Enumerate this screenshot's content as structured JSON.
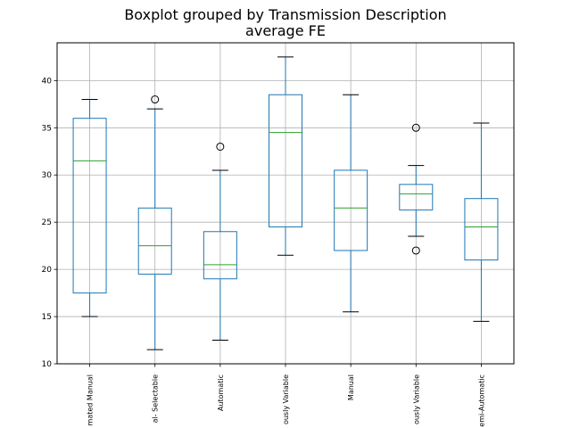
{
  "chart_data": {
    "type": "boxplot",
    "title": "Boxplot grouped by Transmission Description",
    "subtitle": "average FE",
    "xlabel": "",
    "ylabel": "",
    "ylim": [
      10,
      44.0
    ],
    "yticks": [
      10,
      15,
      20,
      25,
      30,
      35,
      40
    ],
    "grid": true,
    "colors": {
      "box": "#1f77b4",
      "median": "#2ca02c",
      "cap": "#000000",
      "grid": "#b0b0b0",
      "axis": "#000000"
    },
    "categories": [
      "mated Manual",
      "al- Selectable",
      "Automatic",
      "ously Variable",
      "Manual",
      "ously Variable",
      "emi-Automatic"
    ],
    "boxes": [
      {
        "whisker_low": 15.0,
        "q1": 17.5,
        "median": 31.5,
        "q3": 36.0,
        "whisker_high": 38.0,
        "outliers": []
      },
      {
        "whisker_low": 11.5,
        "q1": 19.5,
        "median": 22.5,
        "q3": 26.5,
        "whisker_high": 37.0,
        "outliers": [
          38.0
        ]
      },
      {
        "whisker_low": 12.5,
        "q1": 19.0,
        "median": 20.5,
        "q3": 24.0,
        "whisker_high": 30.5,
        "outliers": [
          33.0
        ]
      },
      {
        "whisker_low": 21.5,
        "q1": 24.5,
        "median": 34.5,
        "q3": 38.5,
        "whisker_high": 42.5,
        "outliers": []
      },
      {
        "whisker_low": 15.5,
        "q1": 22.0,
        "median": 26.5,
        "q3": 30.5,
        "whisker_high": 38.5,
        "outliers": []
      },
      {
        "whisker_low": 23.5,
        "q1": 26.3,
        "median": 28.0,
        "q3": 29.0,
        "whisker_high": 31.0,
        "outliers": [
          35.0,
          22.0
        ]
      },
      {
        "whisker_low": 14.5,
        "q1": 21.0,
        "median": 24.5,
        "q3": 27.5,
        "whisker_high": 35.5,
        "outliers": []
      }
    ]
  }
}
